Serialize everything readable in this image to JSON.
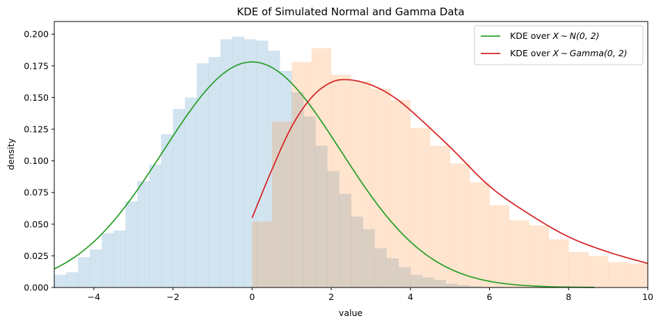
{
  "chart_data": {
    "type": "histogram+line",
    "title": "KDE of Simulated Normal and Gamma Data",
    "xlabel": "value",
    "ylabel": "density",
    "xlim": [
      -5,
      10
    ],
    "ylim": [
      0,
      0.21
    ],
    "xticks": [
      -4,
      -2,
      0,
      2,
      4,
      6,
      8,
      10
    ],
    "xtick_labels": [
      "−4",
      "−2",
      "0",
      "2",
      "4",
      "6",
      "8",
      "10"
    ],
    "yticks": [
      0,
      0.025,
      0.05,
      0.075,
      0.1,
      0.125,
      0.15,
      0.175,
      0.2
    ],
    "ytick_labels": [
      "0.000",
      "0.025",
      "0.050",
      "0.075",
      "0.100",
      "0.125",
      "0.150",
      "0.175",
      "0.200"
    ],
    "legend_placement": "top-right",
    "histograms": [
      {
        "color": "#1f77b4",
        "opacity": 0.2,
        "bin_width": 0.3,
        "start": -5.0,
        "values": [
          0.01,
          0.012,
          0.024,
          0.03,
          0.043,
          0.045,
          0.068,
          0.084,
          0.097,
          0.121,
          0.141,
          0.15,
          0.177,
          0.182,
          0.196,
          0.198,
          0.196,
          0.195,
          0.187,
          0.171,
          0.154,
          0.135,
          0.112,
          0.092,
          0.074,
          0.056,
          0.046,
          0.031,
          0.023,
          0.016,
          0.01,
          0.008,
          0.006,
          0.003,
          0.002,
          0.001,
          0.0005,
          0.0005
        ]
      },
      {
        "color": "#ff7f0e",
        "opacity": 0.2,
        "bin_width": 0.5,
        "start": 0.0,
        "values": [
          0.052,
          0.131,
          0.178,
          0.189,
          0.168,
          0.163,
          0.157,
          0.148,
          0.126,
          0.112,
          0.098,
          0.083,
          0.065,
          0.053,
          0.049,
          0.038,
          0.028,
          0.025,
          0.02,
          0.019
        ]
      }
    ],
    "series": [
      {
        "name": "KDE over $X \\sim N(0, 2)$",
        "color": "#2ca02c",
        "kind": "normal",
        "mu": 0.0,
        "sigma": 2.24,
        "x_range": [
          -5,
          8.65
        ]
      },
      {
        "name": "KDE over $X \\sim Gamma(0, 2)$",
        "color": "#d62728",
        "kind": "gamma-kde",
        "x_range": [
          0,
          10
        ],
        "x": [
          0,
          0.5,
          1.0,
          1.5,
          2.0,
          2.45,
          3.0,
          3.5,
          4.0,
          5.0,
          6.0,
          7.0,
          8.0,
          9.0,
          10.0
        ],
        "y": [
          0.055,
          0.093,
          0.127,
          0.15,
          0.162,
          0.164,
          0.16,
          0.152,
          0.14,
          0.111,
          0.08,
          0.058,
          0.04,
          0.028,
          0.019
        ]
      }
    ]
  },
  "legend": {
    "items": [
      {
        "prefix": "KDE over ",
        "math": "X ∼ N(0, 2)",
        "color": "#2ca02c"
      },
      {
        "prefix": "KDE over ",
        "math": "X ∼ Gamma(0, 2)",
        "color": "#d62728"
      }
    ]
  }
}
